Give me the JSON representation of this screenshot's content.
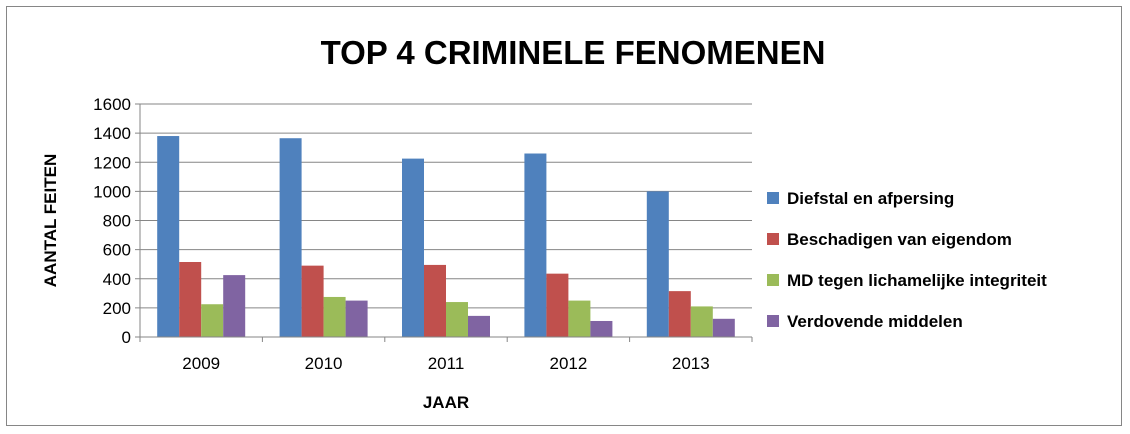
{
  "chart_data": {
    "type": "bar",
    "title": "TOP 4 CRIMINELE FENOMENEN",
    "xlabel": "JAAR",
    "ylabel": "AANTAL FEITEN",
    "categories": [
      "2009",
      "2010",
      "2011",
      "2012",
      "2013"
    ],
    "ylim": [
      0,
      1600
    ],
    "yticks": [
      0,
      200,
      400,
      600,
      800,
      1000,
      1200,
      1400,
      1600
    ],
    "grid": true,
    "legend_position": "right",
    "series": [
      {
        "name": "Diefstal en afpersing",
        "color": "#4F81BD",
        "values": [
          1380,
          1365,
          1225,
          1260,
          1000
        ]
      },
      {
        "name": "Beschadigen van eigendom",
        "color": "#C0504D",
        "values": [
          515,
          490,
          495,
          435,
          315
        ]
      },
      {
        "name": "MD tegen lichamelijke integriteit",
        "color": "#9BBB59",
        "values": [
          225,
          275,
          240,
          250,
          210
        ]
      },
      {
        "name": "Verdovende middelen",
        "color": "#8064A2",
        "values": [
          425,
          250,
          145,
          110,
          125
        ]
      }
    ]
  }
}
